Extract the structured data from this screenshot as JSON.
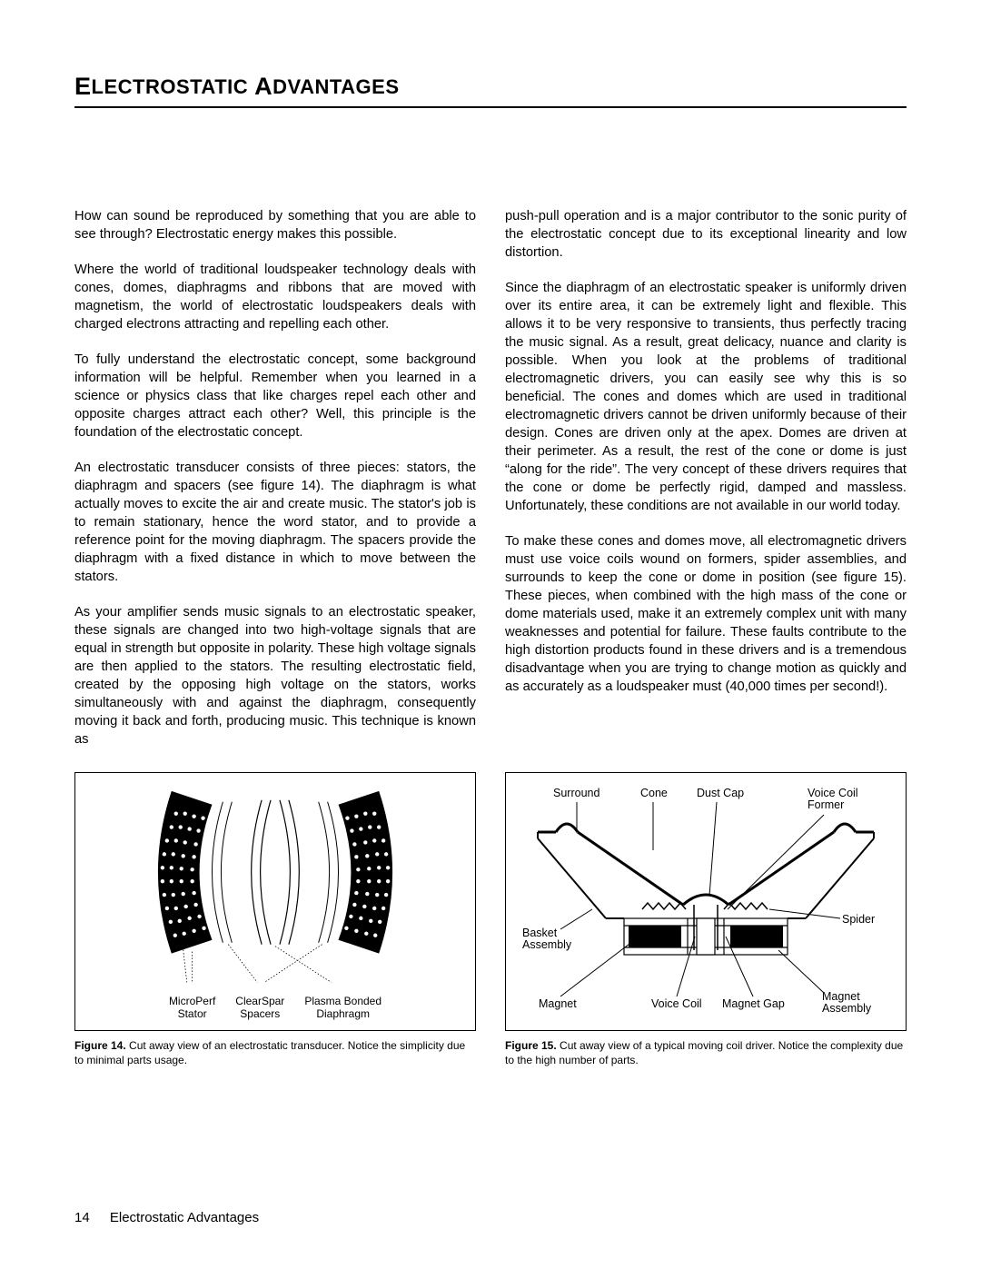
{
  "heading_html": "E<span class='sc'>LECTROSTATIC</span> A<span class='sc'>DVANTAGES</span>",
  "left_paragraphs": [
    "How can sound be reproduced by something that you are able to see through? Electrostatic energy makes this possible.",
    "Where the world of traditional loudspeaker technology deals with cones, domes, diaphragms and ribbons that are moved with magnetism, the world of electrostatic loudspeakers deals with charged electrons attracting and repelling each other.",
    "To fully understand the electrostatic concept, some background information will be helpful. Remember when you learned in a science or physics class that like charges repel each other and opposite charges attract each other? Well, this principle is the foundation of the electrostatic concept.",
    "An electrostatic transducer consists of three pieces: stators, the diaphragm and spacers (see figure 14). The diaphragm is what actually moves to excite the air and create music. The stator's job is to remain stationary, hence the word stator, and to provide a reference point for the moving diaphragm. The spacers provide the diaphragm with a fixed distance in which to move between the stators.",
    "As your amplifier sends music signals to an electrostatic speaker, these signals are changed into two high-voltage signals that are equal in strength but opposite in polarity. These high voltage signals are then applied to the stators. The resulting electrostatic field, created by the opposing high voltage on the stators, works simultaneously with and against the diaphragm, consequently moving it back and forth, producing music. This technique is known as"
  ],
  "right_paragraphs": [
    "push-pull operation and is a major contributor to the sonic purity of the electrostatic concept due to its exceptional linearity and low distortion.",
    "Since the diaphragm of an electrostatic speaker is uniformly driven over its entire area, it can be extremely light and flexible. This allows it to be very responsive to transients, thus perfectly tracing the music signal. As a result, great delicacy, nuance and clarity is possible. When you look at the problems of traditional electromagnetic drivers, you can easily see why this is so beneficial. The cones and domes which are used in traditional electromagnetic drivers cannot be driven uniformly because of their design. Cones are driven only at the apex. Domes are driven at their perimeter. As a result, the rest of the cone or dome is just “along for the ride”. The very concept of these drivers requires that the cone or dome be perfectly rigid, damped and massless. Unfortunately, these conditions are not available in our world today.",
    "To make these cones and domes move, all electromagnetic drivers must use voice coils wound on formers, spider assemblies, and surrounds to keep the cone or dome in position (see figure 15). These pieces, when combined with the high mass of the cone or dome materials used, make it an extremely complex unit with many weaknesses and potential for failure. These faults contribute to the high distortion products found in these drivers and is a tremendous disadvantage when you are trying to change motion as quickly and as accurately as a loudspeaker must (40,000 times per second!)."
  ],
  "fig14": {
    "caption_bold": "Figure 14.",
    "caption": " Cut away view of an electrostatic transducer. Notice the simplicity due to minimal parts usage.",
    "labels": [
      "MicroPerf\nStator",
      "ClearSpar\nSpacers",
      "Plasma Bonded\nDiaphragm"
    ]
  },
  "fig15": {
    "caption_bold": "Figure 15.",
    "caption": " Cut away view of a typical moving coil driver. Notice the complexity due to the high number of parts.",
    "labels": {
      "surround": "Surround",
      "cone": "Cone",
      "dustcap": "Dust Cap",
      "vcformer": "Voice Coil\nFormer",
      "basket": "Basket\nAssembly",
      "spider": "Spider",
      "magnet": "Magnet",
      "voicecoil": "Voice Coil",
      "magnetgap": "Magnet Gap",
      "magassy": "Magnet\nAssembly"
    }
  },
  "footer": {
    "page": "14",
    "title": "Electrostatic Advantages"
  }
}
